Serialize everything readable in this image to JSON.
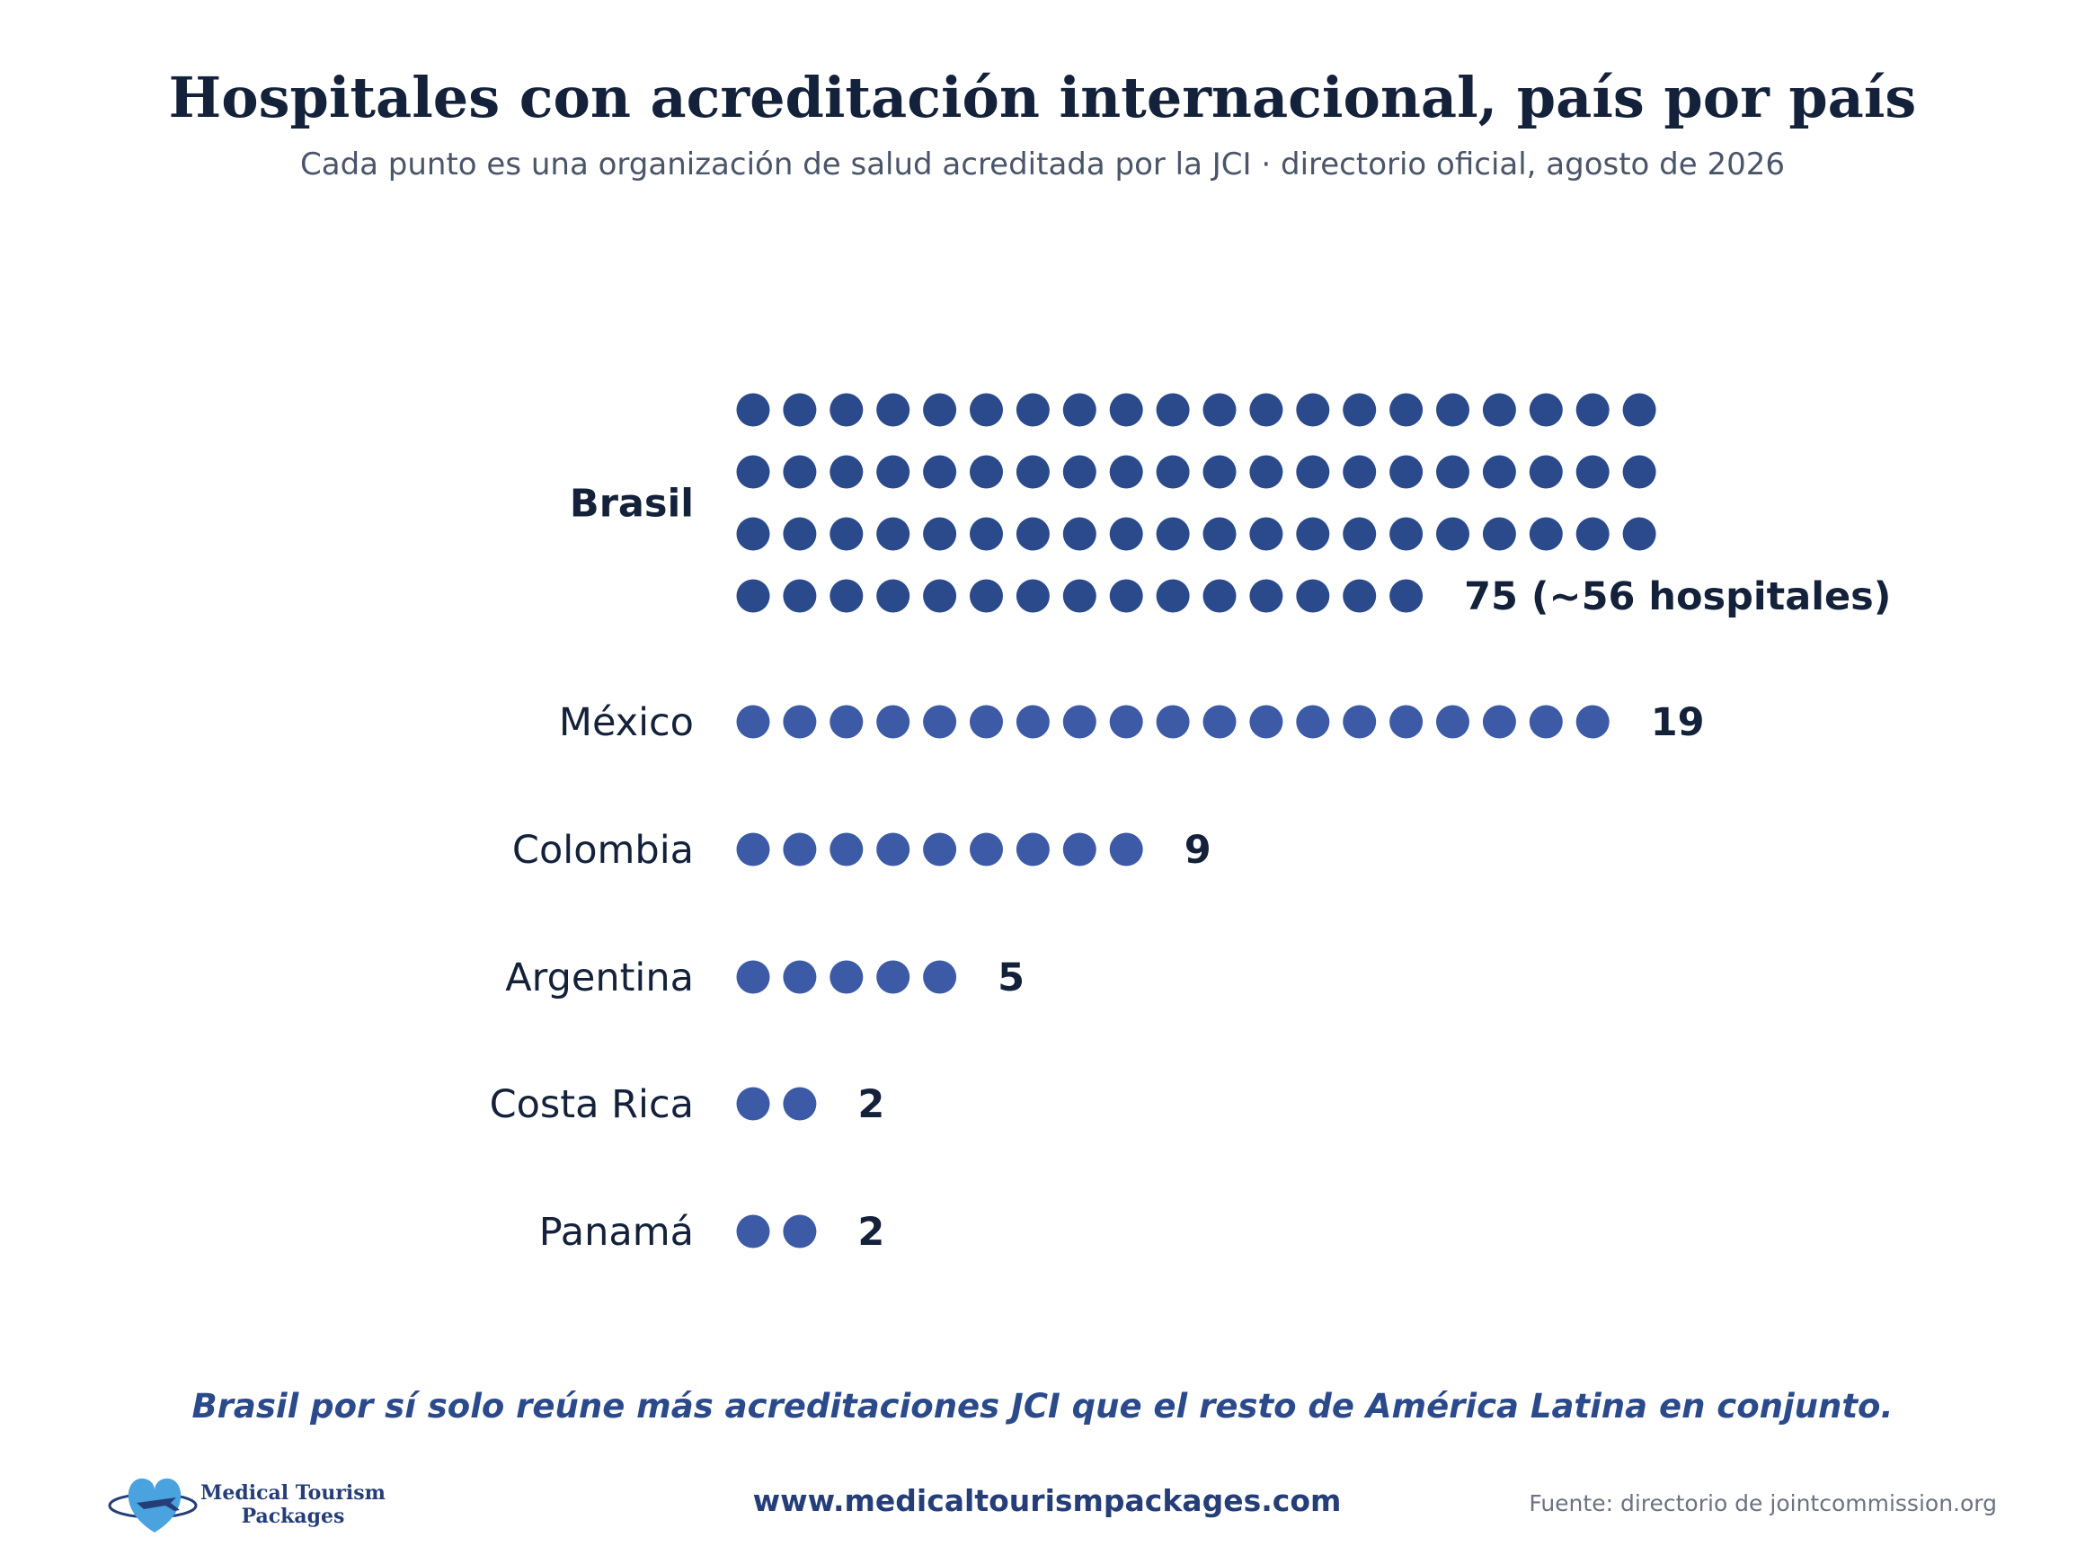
{
  "header": {
    "title": "Hospitales con acreditación internacional, país por país",
    "subtitle": "Cada punto es una organización de salud acreditada por la JCI · directorio oficial, agosto de 2026"
  },
  "chart_data": {
    "type": "dot-matrix",
    "title": "Hospitales con acreditación internacional, país por país",
    "subtitle": "Cada punto es una organización de salud acreditada por la JCI · directorio oficial, agosto de 2026",
    "categories": [
      "Brasil",
      "México",
      "Colombia",
      "Argentina",
      "Costa Rica",
      "Panamá"
    ],
    "values": [
      75,
      19,
      9,
      5,
      2,
      2
    ],
    "value_labels": [
      "75  (~56 hospitales)",
      "19",
      "9",
      "5",
      "2",
      "2"
    ],
    "highlight": "Brasil",
    "dots_per_row": 20,
    "colors": {
      "highlight": "#2b4a8b",
      "default": "#3c5aa6",
      "text": "#14213a"
    }
  },
  "footer": {
    "takeaway": "Brasil por sí solo reúne más acreditaciones JCI que el resto de América Latina en conjunto.",
    "website": "www.medicaltourismpackages.com",
    "source": "Fuente: directorio de jointcommission.org",
    "logo_line1": "Medical Tourism",
    "logo_line2": "Packages"
  }
}
